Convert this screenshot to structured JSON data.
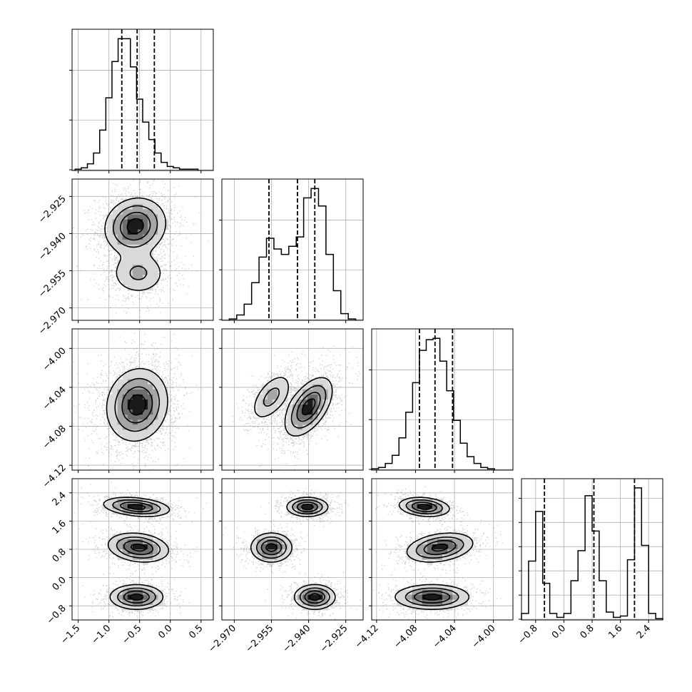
{
  "chart_data": {
    "type": "corner",
    "title": "",
    "grid": true,
    "parameters": [
      {
        "range": [
          -1.6,
          0.7
        ],
        "ticks": [
          -1.5,
          -1.0,
          -0.5,
          0.0,
          0.5
        ],
        "tick_labels": [
          "−1.5",
          "−1.0",
          "−0.5",
          "0.0",
          "0.5"
        ]
      },
      {
        "range": [
          -2.975,
          -2.918
        ],
        "ticks": [
          -2.97,
          -2.955,
          -2.94,
          -2.925
        ],
        "tick_labels": [
          "−2.970",
          "−2.955",
          "−2.940",
          "−2.925"
        ]
      },
      {
        "range": [
          -4.125,
          -3.98
        ],
        "ticks": [
          -4.12,
          -4.08,
          -4.04,
          -4.0
        ],
        "tick_labels": [
          "−4.12",
          "−4.08",
          "−4.04",
          "−4.00"
        ]
      },
      {
        "range": [
          -1.2,
          2.8
        ],
        "ticks": [
          -0.8,
          0.0,
          0.8,
          1.6,
          2.4
        ],
        "tick_labels": [
          "−0.8",
          "0.0",
          "0.8",
          "1.6",
          "2.4"
        ]
      }
    ],
    "quantiles": [
      [
        -0.79,
        -0.54,
        -0.26
      ],
      [
        -2.956,
        -2.9445,
        -2.9375
      ],
      [
        -4.076,
        -4.06,
        -4.042
      ],
      [
        -0.55,
        0.85,
        2.0
      ]
    ],
    "hist_ymax": [
      1.05,
      1.05,
      1.05,
      1.08
    ],
    "histograms": [
      {
        "edges": [
          -1.55,
          -1.45,
          -1.35,
          -1.25,
          -1.15,
          -1.05,
          -0.95,
          -0.85,
          -0.75,
          -0.65,
          -0.55,
          -0.45,
          -0.35,
          -0.25,
          -0.15,
          -0.05,
          0.05,
          0.15,
          0.25,
          0.35,
          0.45
        ],
        "counts": [
          0.01,
          0.02,
          0.05,
          0.13,
          0.3,
          0.54,
          0.81,
          0.98,
          0.98,
          0.77,
          0.53,
          0.36,
          0.23,
          0.13,
          0.06,
          0.03,
          0.02,
          0.01,
          0.01,
          0.01
        ]
      },
      {
        "edges": [
          -2.972,
          -2.969,
          -2.966,
          -2.963,
          -2.96,
          -2.957,
          -2.954,
          -2.951,
          -2.948,
          -2.945,
          -2.942,
          -2.939,
          -2.936,
          -2.933,
          -2.93,
          -2.927,
          -2.924,
          -2.921
        ],
        "counts": [
          0.01,
          0.04,
          0.12,
          0.28,
          0.47,
          0.61,
          0.53,
          0.49,
          0.55,
          0.62,
          0.91,
          0.98,
          0.85,
          0.49,
          0.22,
          0.05,
          0.01
        ]
      },
      {
        "edges": [
          -4.125,
          -4.118,
          -4.111,
          -4.104,
          -4.097,
          -4.09,
          -4.083,
          -4.076,
          -4.069,
          -4.062,
          -4.055,
          -4.048,
          -4.041,
          -4.034,
          -4.027,
          -4.02,
          -4.013,
          -4.006,
          -3.999
        ],
        "counts": [
          0.01,
          0.02,
          0.05,
          0.11,
          0.24,
          0.43,
          0.65,
          0.89,
          0.97,
          0.98,
          0.81,
          0.59,
          0.37,
          0.2,
          0.1,
          0.05,
          0.02,
          0.01
        ]
      },
      {
        "edges": [
          -1.2,
          -1.0,
          -0.8,
          -0.6,
          -0.4,
          -0.2,
          0.0,
          0.2,
          0.4,
          0.6,
          0.8,
          1.0,
          1.2,
          1.4,
          1.6,
          1.8,
          2.0,
          2.2,
          2.4,
          2.6,
          2.8
        ],
        "counts": [
          0.05,
          0.45,
          0.83,
          0.28,
          0.05,
          0.02,
          0.05,
          0.3,
          0.53,
          0.95,
          0.68,
          0.3,
          0.06,
          0.02,
          0.03,
          0.46,
          1.01,
          0.57,
          0.05,
          0.01
        ]
      }
    ],
    "modes_2d": [
      {
        "row": 1,
        "col": 0,
        "modes": [
          {
            "mx": -0.57,
            "my": -2.937,
            "sx": 0.24,
            "sy": 0.0055,
            "rho": 0.1,
            "w": 0.72
          },
          {
            "mx": -0.52,
            "my": -2.956,
            "sx": 0.23,
            "sy": 0.0045,
            "rho": 0.0,
            "w": 0.28
          }
        ]
      },
      {
        "row": 2,
        "col": 0,
        "modes": [
          {
            "mx": -0.54,
            "my": -4.058,
            "sx": 0.24,
            "sy": 0.018,
            "rho": 0.1,
            "w": 1.0
          }
        ]
      },
      {
        "row": 2,
        "col": 1,
        "modes": [
          {
            "mx": -2.955,
            "my": -4.05,
            "sx": 0.0042,
            "sy": 0.0125,
            "rho": 0.55,
            "w": 0.3
          },
          {
            "mx": -2.94,
            "my": -4.06,
            "sx": 0.0046,
            "sy": 0.0145,
            "rho": 0.55,
            "w": 0.7
          }
        ]
      },
      {
        "row": 3,
        "col": 0,
        "modes": [
          {
            "mx": -0.55,
            "my": 2.0,
            "sx": 0.26,
            "sy": 0.13,
            "rho": -0.3,
            "w": 0.34
          },
          {
            "mx": -0.52,
            "my": 0.85,
            "sx": 0.24,
            "sy": 0.2,
            "rho": -0.2,
            "w": 0.33
          },
          {
            "mx": -0.55,
            "my": -0.55,
            "sx": 0.21,
            "sy": 0.17,
            "rho": 0.0,
            "w": 0.33
          }
        ]
      },
      {
        "row": 3,
        "col": 1,
        "modes": [
          {
            "mx": -2.9405,
            "my": 2.0,
            "sx": 0.004,
            "sy": 0.13,
            "rho": 0.0,
            "w": 0.34
          },
          {
            "mx": -2.955,
            "my": 0.85,
            "sx": 0.004,
            "sy": 0.2,
            "rho": 0.0,
            "w": 0.33
          },
          {
            "mx": -2.9375,
            "my": -0.55,
            "sx": 0.004,
            "sy": 0.17,
            "rho": 0.0,
            "w": 0.33
          }
        ]
      },
      {
        "row": 3,
        "col": 2,
        "modes": [
          {
            "mx": -4.071,
            "my": 2.0,
            "sx": 0.0125,
            "sy": 0.13,
            "rho": -0.2,
            "w": 0.34
          },
          {
            "mx": -4.055,
            "my": 0.85,
            "sx": 0.0165,
            "sy": 0.2,
            "rho": 0.3,
            "w": 0.33
          },
          {
            "mx": -4.063,
            "my": -0.55,
            "sx": 0.0185,
            "sy": 0.17,
            "rho": 0.0,
            "w": 0.33
          }
        ]
      }
    ]
  }
}
